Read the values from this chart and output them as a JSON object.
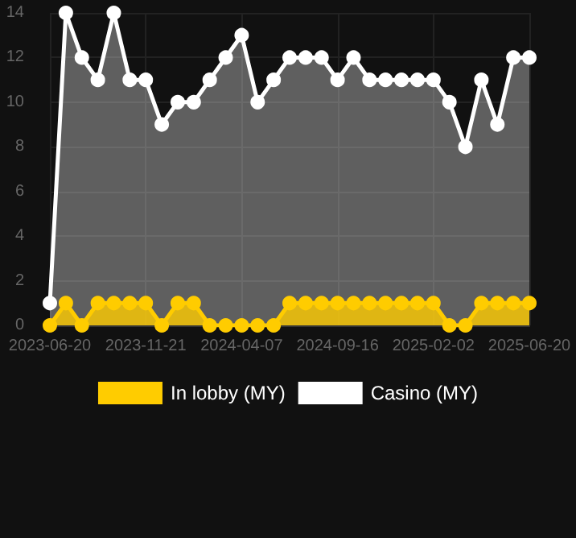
{
  "chart_data": {
    "type": "area",
    "categories": [
      "2023-06-20",
      null,
      null,
      null,
      null,
      null,
      "2023-11-21",
      null,
      null,
      null,
      null,
      null,
      "2024-04-07",
      null,
      null,
      null,
      null,
      null,
      "2024-09-16",
      null,
      null,
      null,
      null,
      null,
      "2025-02-02",
      null,
      null,
      null,
      null,
      null,
      "2025-06-20"
    ],
    "series": [
      {
        "name": "In lobby (MY)",
        "color": "#ffcc00",
        "values": [
          0,
          1,
          0,
          1,
          1,
          1,
          1,
          0,
          1,
          1,
          0,
          0,
          0,
          0,
          0,
          1,
          1,
          1,
          1,
          1,
          1,
          1,
          1,
          1,
          1,
          0,
          0,
          1,
          1,
          1,
          1
        ]
      },
      {
        "name": "Casino (MY)",
        "color": "#ffffff",
        "values": [
          1,
          14,
          12,
          11,
          14,
          11,
          11,
          9,
          10,
          10,
          11,
          12,
          13,
          10,
          11,
          12,
          12,
          12,
          11,
          12,
          11,
          11,
          11,
          11,
          11,
          10,
          8,
          11,
          9,
          12,
          12
        ]
      }
    ],
    "ylim": [
      0,
      14
    ],
    "yticks": [
      0,
      2,
      4,
      6,
      8,
      10,
      12,
      14
    ],
    "grid": true,
    "legend": "bottom",
    "marker": "circle"
  }
}
